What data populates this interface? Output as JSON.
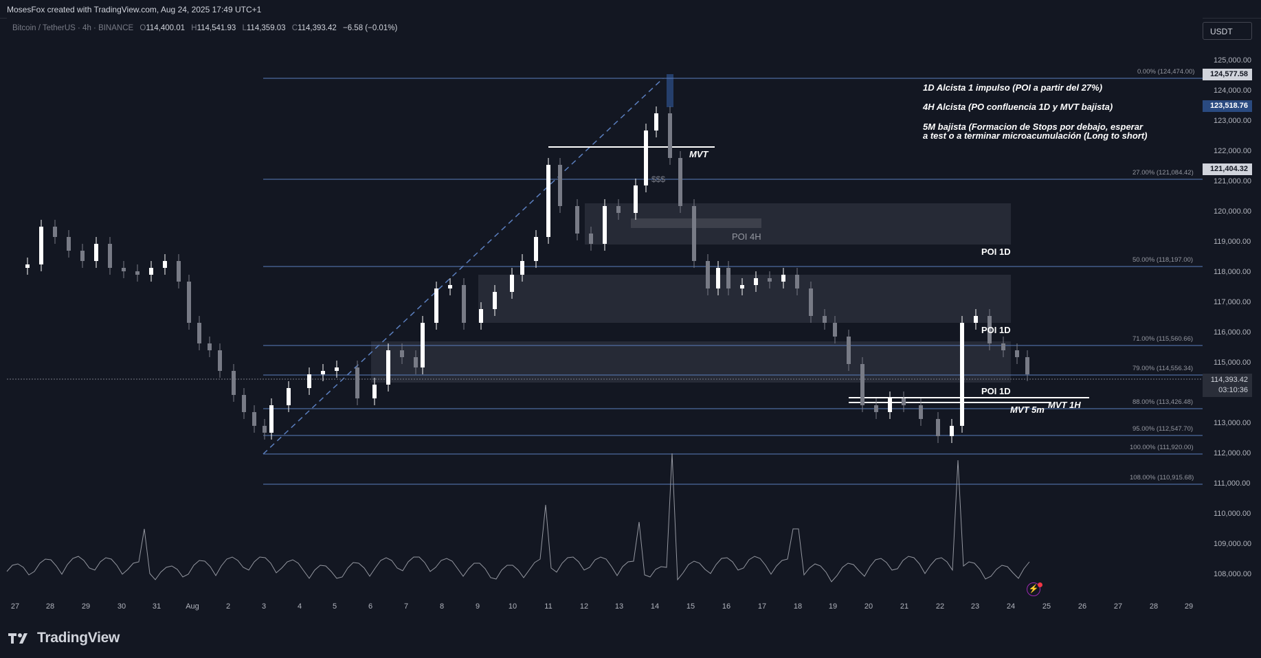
{
  "header": {
    "credit": "MosesFox created with TradingView.com, Aug 24, 2025 17:49 UTC+1"
  },
  "legend": {
    "symbol": "Bitcoin / TetherUS · 4h · BINANCE",
    "o_label": "O",
    "o_value": "114,400.01",
    "h_label": "H",
    "h_value": "114,541.93",
    "l_label": "L",
    "l_value": "114,359.03",
    "c_label": "C",
    "c_value": "114,393.42",
    "change": "−6.58 (−0.01%)"
  },
  "currency": "USDT",
  "price_axis": {
    "ticks": [
      "125,000.00",
      "124,000.00",
      "123,000.00",
      "122,000.00",
      "121,000.00",
      "120,000.00",
      "119,000.00",
      "118,000.00",
      "117,000.00",
      "116,000.00",
      "115,000.00",
      "113,000.00",
      "112,000.00",
      "111,000.00",
      "110,000.00",
      "109,000.00",
      "108,000.00"
    ],
    "tags": [
      "124,577.58",
      "123,518.76",
      "121,404.32"
    ],
    "current_price": "114,393.42",
    "countdown": "03:10:36"
  },
  "time_axis": {
    "labels": [
      "27",
      "28",
      "29",
      "30",
      "31",
      "Aug",
      "2",
      "3",
      "4",
      "5",
      "6",
      "7",
      "8",
      "9",
      "10",
      "11",
      "12",
      "13",
      "14",
      "15",
      "16",
      "17",
      "18",
      "19",
      "20",
      "21",
      "22",
      "23",
      "24",
      "25",
      "26",
      "27",
      "28",
      "29"
    ]
  },
  "fib_levels": [
    {
      "label": "0.00% (124,474.00)"
    },
    {
      "label": "27.00% (121,084.42)"
    },
    {
      "label": "50.00% (118,197.00)"
    },
    {
      "label": "71.00% (115,560.66)"
    },
    {
      "label": "79.00% (114,556.34)"
    },
    {
      "label": "88.00% (113,426.48)"
    },
    {
      "label": "95.00% (112,547.70)"
    },
    {
      "label": "100.00% (111,920.00)"
    },
    {
      "label": "108.00% (110,915.68)"
    }
  ],
  "annotations": {
    "note1": "1D Alcista 1 impulso (POI a partir del 27%)",
    "note2": "4H Alcista (PO confluencia 1D y MVT bajista)",
    "note3_line1": "5M bajista (Formacion de Stops por debajo, esperar",
    "note3_line2": "a test o a terminar microacumulación (Long to short)",
    "mvt": "MVT",
    "sss": "$$$",
    "poi_4h": "POI 4H",
    "poi_1d_a": "POI 1D",
    "poi_1d_b": "POI 1D",
    "poi_1d_c": "POI 1D",
    "mvt_5m": "MVT 5m",
    "mvt_1h": "MVT 1H"
  },
  "colors": {
    "background": "#131722",
    "fib_line": "#5b7fbf",
    "zone": "#2a2e39",
    "candle_up": "#ffffff",
    "candle_down": "#787b86",
    "tag_blue": "#2a4a80"
  },
  "branding": {
    "logo_text": "TradingView"
  }
}
